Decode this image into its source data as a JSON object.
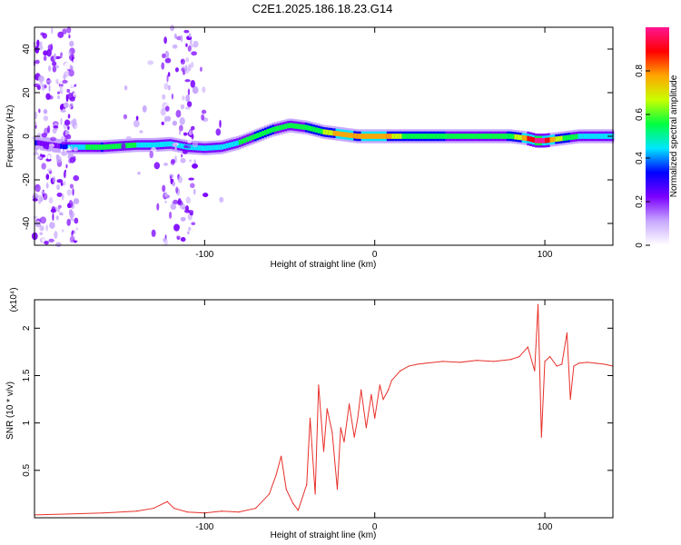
{
  "figure": {
    "title": "C2E1.2025.186.18.23.G14"
  },
  "chart_data": [
    {
      "type": "heatmap",
      "xlabel": "Height of straight line (km)",
      "ylabel": "Frequency (Hz)",
      "xlim": [
        -200,
        140
      ],
      "ylim": [
        -50,
        50
      ],
      "xticks": [
        -100,
        0,
        100
      ],
      "yticks": [
        -40,
        -20,
        0,
        20,
        40
      ],
      "colorbar": {
        "label": "Normalized spectral amplitude",
        "range": [
          0.0,
          1.0
        ],
        "ticks": [
          0.0,
          0.2,
          0.4,
          0.6,
          0.8
        ],
        "colors": [
          "#ffffff",
          "#c8a8ff",
          "#7b00ff",
          "#0000ff",
          "#00e6ff",
          "#00ff40",
          "#c8ff00",
          "#ffa500",
          "#ff0000",
          "#ff1493"
        ]
      },
      "ridge": {
        "x": [
          -198,
          -190,
          -180,
          -170,
          -160,
          -150,
          -140,
          -130,
          -120,
          -110,
          -100,
          -90,
          -80,
          -70,
          -60,
          -50,
          -40,
          -30,
          -20,
          -10,
          0,
          10,
          20,
          40,
          60,
          80,
          90,
          95,
          100,
          110,
          120,
          140
        ],
        "frequency": [
          -3,
          -4,
          -5,
          -5,
          -5,
          -4.5,
          -4,
          -4,
          -3.5,
          -5,
          -5.5,
          -5,
          -3,
          0,
          3,
          5,
          4,
          2,
          1,
          0,
          0,
          0,
          0,
          0,
          0,
          0,
          -1,
          -2,
          -2,
          -1,
          0,
          0
        ],
        "amplitude": [
          0.3,
          0.2,
          0.4,
          0.5,
          0.55,
          0.5,
          0.5,
          0.45,
          0.4,
          0.45,
          0.4,
          0.45,
          0.5,
          0.55,
          0.55,
          0.5,
          0.55,
          0.6,
          0.8,
          0.7,
          0.8,
          0.7,
          0.55,
          0.55,
          0.5,
          0.55,
          0.8,
          0.95,
          0.9,
          0.6,
          0.5,
          0.45
        ]
      }
    },
    {
      "type": "line",
      "xlabel": "Height of straight line (km)",
      "ylabel": "SNR (10 * v/v)",
      "multiplier": "(x10⁴)",
      "xlim": [
        -200,
        140
      ],
      "ylim": [
        0,
        2.3
      ],
      "xticks": [
        -100,
        0,
        100
      ],
      "yticks": [
        0.5,
        1.0,
        1.5,
        2.0
      ],
      "series": [
        {
          "color": "#e8302a",
          "x": [
            -200,
            -180,
            -160,
            -140,
            -130,
            -122,
            -118,
            -110,
            -100,
            -90,
            -80,
            -70,
            -62,
            -58,
            -55,
            -52,
            -48,
            -45,
            -40,
            -38,
            -35,
            -33,
            -30,
            -28,
            -25,
            -22,
            -20,
            -18,
            -15,
            -12,
            -10,
            -8,
            -5,
            -2,
            0,
            3,
            5,
            8,
            10,
            15,
            20,
            25,
            30,
            40,
            50,
            60,
            70,
            80,
            85,
            90,
            94,
            96,
            98,
            100,
            103,
            107,
            110,
            113,
            115,
            117,
            120,
            125,
            130,
            135,
            140
          ],
          "y": [
            0.03,
            0.04,
            0.05,
            0.07,
            0.1,
            0.17,
            0.1,
            0.06,
            0.05,
            0.07,
            0.06,
            0.1,
            0.25,
            0.45,
            0.65,
            0.3,
            0.15,
            0.08,
            0.35,
            1.05,
            0.25,
            1.4,
            0.7,
            1.15,
            0.9,
            0.3,
            0.95,
            0.8,
            1.2,
            0.85,
            1.05,
            1.35,
            0.95,
            1.3,
            1.05,
            1.4,
            1.25,
            1.35,
            1.45,
            1.55,
            1.6,
            1.62,
            1.63,
            1.65,
            1.64,
            1.66,
            1.65,
            1.67,
            1.7,
            1.8,
            1.55,
            2.25,
            0.85,
            1.65,
            1.7,
            1.6,
            1.62,
            1.95,
            1.25,
            1.6,
            1.63,
            1.64,
            1.63,
            1.62,
            1.6
          ]
        }
      ]
    }
  ]
}
